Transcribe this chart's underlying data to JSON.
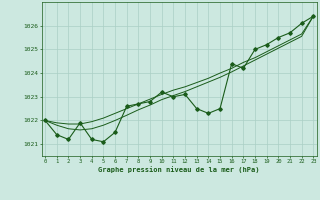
{
  "hours": [
    0,
    1,
    2,
    3,
    4,
    5,
    6,
    7,
    8,
    9,
    10,
    11,
    12,
    13,
    14,
    15,
    16,
    17,
    18,
    19,
    20,
    21,
    22,
    23
  ],
  "pressure_main": [
    1022.0,
    1021.4,
    1021.2,
    1021.9,
    1021.2,
    1021.1,
    1021.5,
    1022.6,
    1022.7,
    1022.8,
    1023.2,
    1023.0,
    1023.1,
    1022.5,
    1022.3,
    1022.5,
    1024.4,
    1024.2,
    1025.0,
    1025.2,
    1025.5,
    1025.7,
    1026.1,
    1026.4
  ],
  "pressure_line1": [
    1022.0,
    1021.9,
    1021.85,
    1021.85,
    1021.95,
    1022.1,
    1022.3,
    1022.5,
    1022.7,
    1022.9,
    1023.1,
    1023.28,
    1023.42,
    1023.6,
    1023.78,
    1024.0,
    1024.2,
    1024.45,
    1024.65,
    1024.9,
    1025.15,
    1025.4,
    1025.65,
    1026.4
  ],
  "pressure_line2": [
    1022.0,
    1021.8,
    1021.65,
    1021.6,
    1021.65,
    1021.8,
    1022.0,
    1022.22,
    1022.45,
    1022.65,
    1022.88,
    1023.05,
    1023.22,
    1023.42,
    1023.62,
    1023.82,
    1024.05,
    1024.3,
    1024.55,
    1024.8,
    1025.05,
    1025.3,
    1025.55,
    1026.4
  ],
  "ylim": [
    1020.5,
    1027.0
  ],
  "yticks": [
    1021,
    1022,
    1023,
    1024,
    1025,
    1026
  ],
  "line_color": "#1a5c1a",
  "bg_color": "#cce8e0",
  "grid_color": "#aacfc5",
  "xlabel": "Graphe pression niveau de la mer (hPa)",
  "xlabel_color": "#1a5c1a",
  "tick_color": "#1a5c1a",
  "figsize": [
    3.2,
    2.0
  ],
  "dpi": 100
}
